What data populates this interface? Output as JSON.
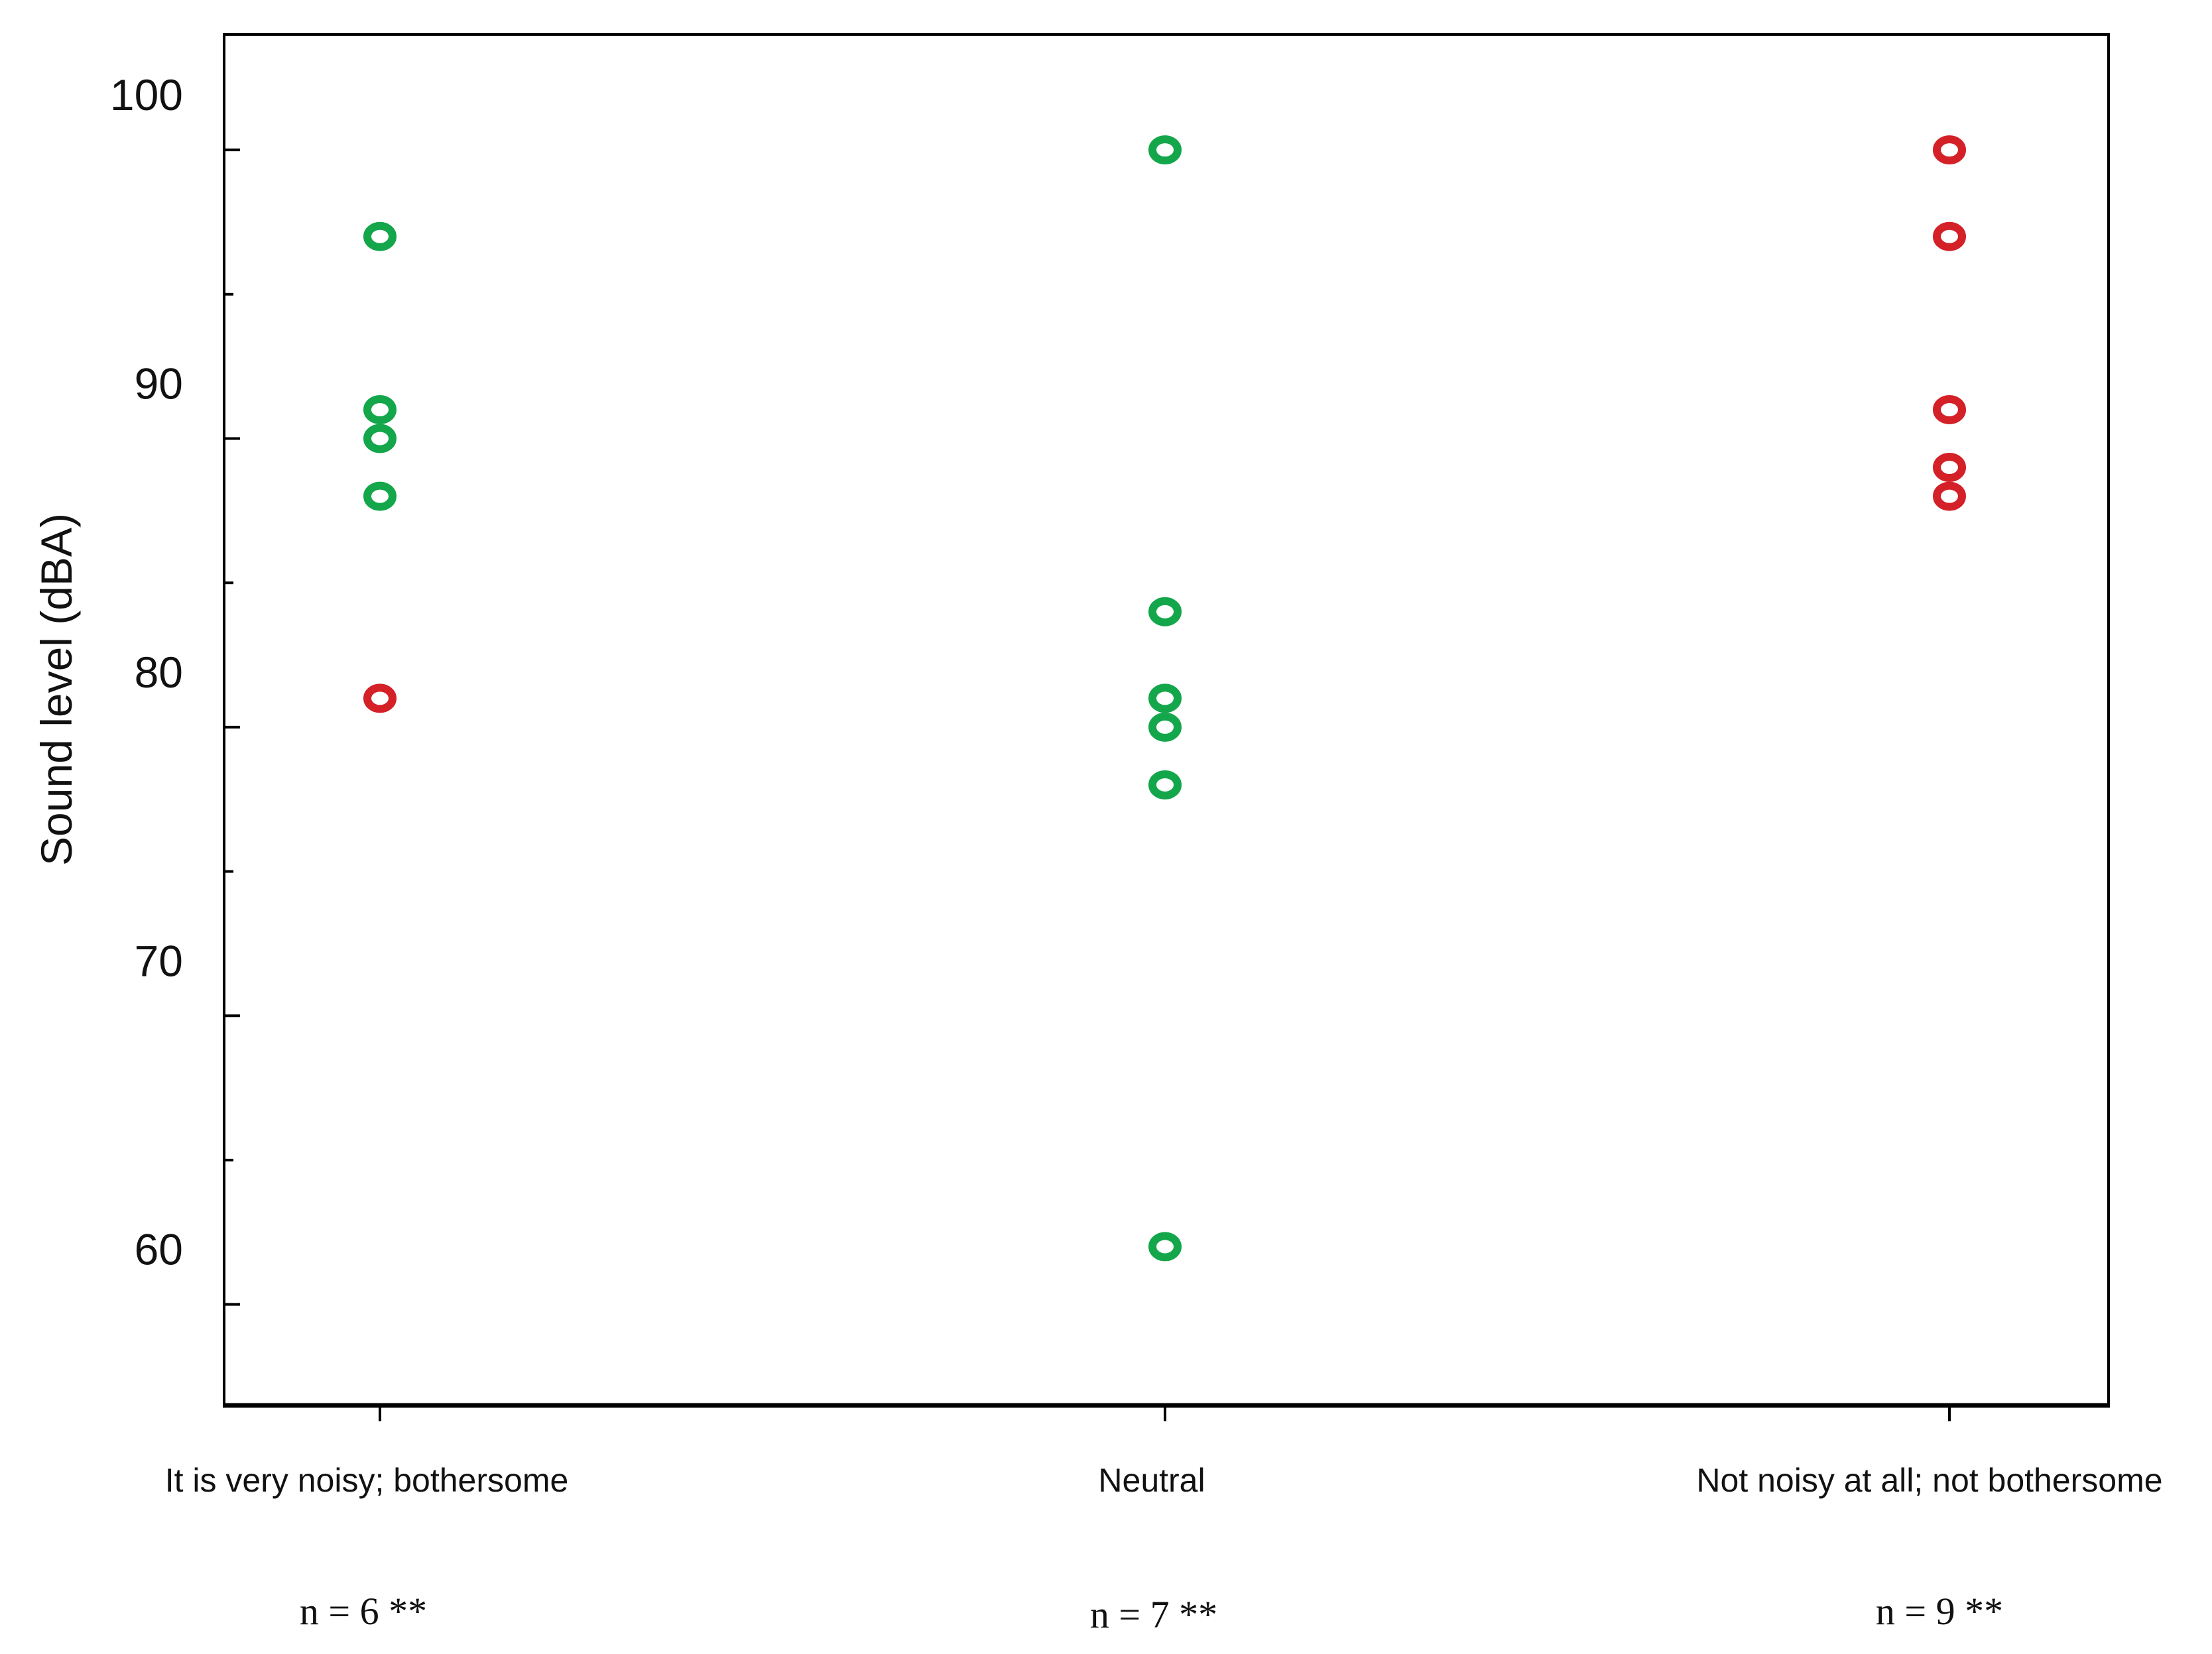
{
  "chart_data": {
    "type": "scatter",
    "ylabel": "Sound level (dBA)",
    "xlabel": "",
    "ylim": [
      56.5,
      104
    ],
    "yticks_major": [
      60,
      70,
      80,
      90,
      100
    ],
    "yticks_minor": [
      65,
      75,
      85,
      95
    ],
    "grid": false,
    "legend": "none",
    "categories": [
      "It is very noisy; bothersome",
      "Neutral",
      "Not noisy at all; not bothersome"
    ],
    "sample_sizes": [
      "n = 6 **",
      "n = 7 **",
      "n = 9 **"
    ],
    "colors": {
      "green": "#14a64a",
      "red": "#d42027",
      "axis": "#000000"
    },
    "points": [
      {
        "category": 0,
        "y": 97,
        "color": "green"
      },
      {
        "category": 0,
        "y": 91,
        "color": "green"
      },
      {
        "category": 0,
        "y": 90,
        "color": "green"
      },
      {
        "category": 0,
        "y": 88,
        "color": "green"
      },
      {
        "category": 0,
        "y": 81,
        "color": "red"
      },
      {
        "category": 1,
        "y": 100,
        "color": "green"
      },
      {
        "category": 1,
        "y": 84,
        "color": "green"
      },
      {
        "category": 1,
        "y": 81,
        "color": "green"
      },
      {
        "category": 1,
        "y": 80,
        "color": "green"
      },
      {
        "category": 1,
        "y": 78,
        "color": "green"
      },
      {
        "category": 1,
        "y": 62,
        "color": "green"
      },
      {
        "category": 2,
        "y": 100,
        "color": "red"
      },
      {
        "category": 2,
        "y": 97,
        "color": "red"
      },
      {
        "category": 2,
        "y": 91,
        "color": "red"
      },
      {
        "category": 2,
        "y": 89,
        "color": "red"
      },
      {
        "category": 2,
        "y": 88,
        "color": "red"
      }
    ]
  }
}
